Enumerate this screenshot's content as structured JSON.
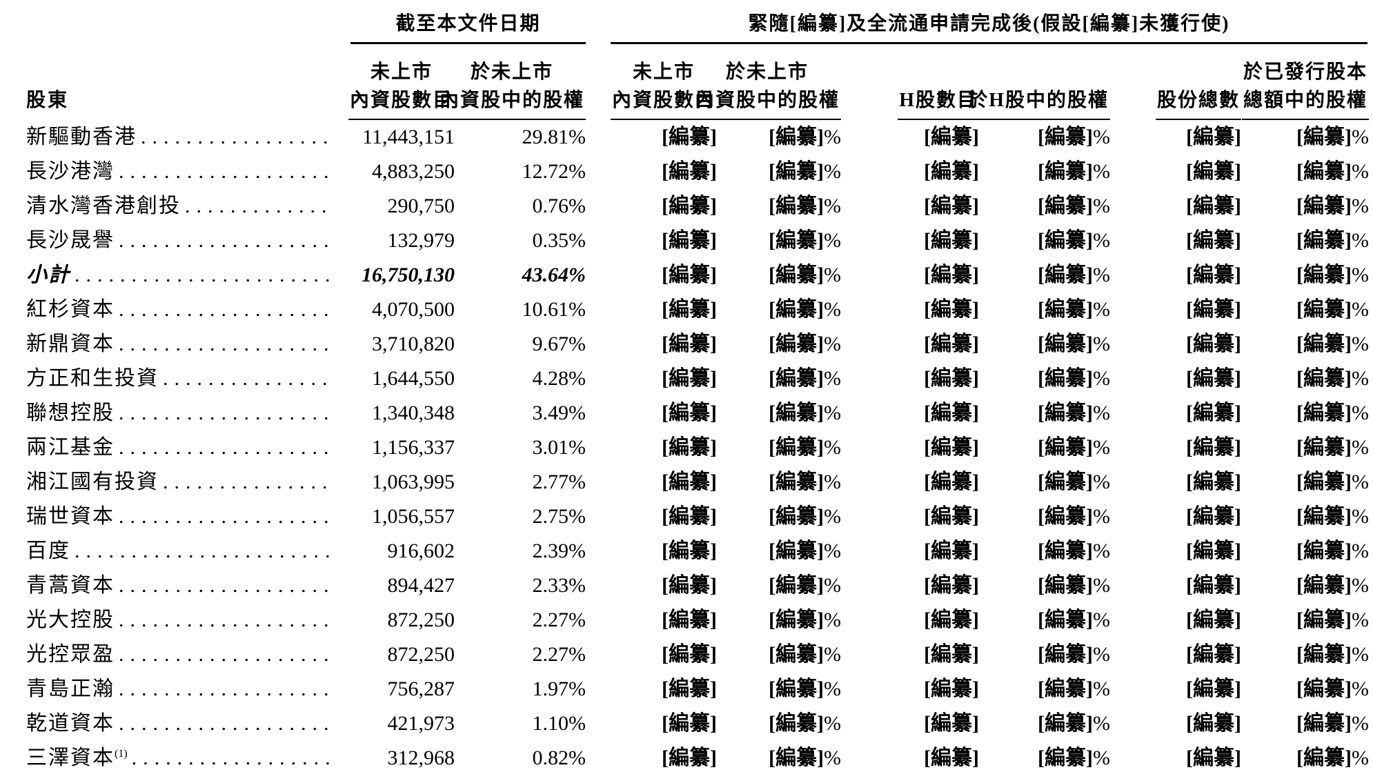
{
  "page": {
    "background": "#ffffff",
    "text_color": "#000000"
  },
  "table": {
    "group_headers": {
      "as_of_date": "截至本文件日期",
      "post_completion": "緊隨[編纂]及全流通申請完成後(假設[編纂]未獲行使)"
    },
    "shareholder_header": "股東",
    "column_headers": [
      {
        "id": "unlisted-domestic-shares-asof",
        "line1": "未上市",
        "line2": "內資股數目"
      },
      {
        "id": "unlisted-domestic-equity-asof",
        "line1": "於未上市",
        "line2": "內資股中的股權"
      },
      {
        "id": "unlisted-domestic-shares-post",
        "line1": "未上市",
        "line2": "內資股數目"
      },
      {
        "id": "unlisted-domestic-equity-post",
        "line1": "於未上市",
        "line2": "內資股中的股權"
      },
      {
        "id": "h-shares",
        "line1": "",
        "line2": "H股數目"
      },
      {
        "id": "h-share-equity",
        "line1": "",
        "line2": "於H股中的股權"
      },
      {
        "id": "total-shares",
        "line1": "",
        "line2": "股份總數"
      },
      {
        "id": "issued-capital-equity",
        "line1": "於已發行股本",
        "line2": "總額中的股權"
      }
    ],
    "redacted_label": "[編纂]",
    "percent_sign": "%",
    "rows": [
      {
        "name": "新驅動香港",
        "footnote": "",
        "shares": "11,443,151",
        "percent": "29.81%",
        "emphasis": false
      },
      {
        "name": "長沙港灣",
        "footnote": "",
        "shares": "4,883,250",
        "percent": "12.72%",
        "emphasis": false
      },
      {
        "name": "清水灣香港創投",
        "footnote": "",
        "shares": "290,750",
        "percent": "0.76%",
        "emphasis": false
      },
      {
        "name": "長沙晟譽",
        "footnote": "",
        "shares": "132,979",
        "percent": "0.35%",
        "emphasis": false
      },
      {
        "name": "小計",
        "footnote": "",
        "shares": "16,750,130",
        "percent": "43.64%",
        "emphasis": true
      },
      {
        "name": "紅杉資本",
        "footnote": "",
        "shares": "4,070,500",
        "percent": "10.61%",
        "emphasis": false
      },
      {
        "name": "新鼎資本",
        "footnote": "",
        "shares": "3,710,820",
        "percent": "9.67%",
        "emphasis": false
      },
      {
        "name": "方正和生投資",
        "footnote": "",
        "shares": "1,644,550",
        "percent": "4.28%",
        "emphasis": false
      },
      {
        "name": "聯想控股",
        "footnote": "",
        "shares": "1,340,348",
        "percent": "3.49%",
        "emphasis": false
      },
      {
        "name": "兩江基金",
        "footnote": "",
        "shares": "1,156,337",
        "percent": "3.01%",
        "emphasis": false
      },
      {
        "name": "湘江國有投資",
        "footnote": "",
        "shares": "1,063,995",
        "percent": "2.77%",
        "emphasis": false
      },
      {
        "name": "瑞世資本",
        "footnote": "",
        "shares": "1,056,557",
        "percent": "2.75%",
        "emphasis": false
      },
      {
        "name": "百度",
        "footnote": "",
        "shares": "916,602",
        "percent": "2.39%",
        "emphasis": false
      },
      {
        "name": "青蒿資本",
        "footnote": "",
        "shares": "894,427",
        "percent": "2.33%",
        "emphasis": false
      },
      {
        "name": "光大控股",
        "footnote": "",
        "shares": "872,250",
        "percent": "2.27%",
        "emphasis": false
      },
      {
        "name": "光控眾盈",
        "footnote": "",
        "shares": "872,250",
        "percent": "2.27%",
        "emphasis": false
      },
      {
        "name": "青島正瀚",
        "footnote": "",
        "shares": "756,287",
        "percent": "1.97%",
        "emphasis": false
      },
      {
        "name": "乾道資本",
        "footnote": "",
        "shares": "421,973",
        "percent": "1.10%",
        "emphasis": false
      },
      {
        "name": "三澤資本",
        "footnote": "(1)",
        "shares": "312,968",
        "percent": "0.82%",
        "emphasis": false
      }
    ]
  }
}
